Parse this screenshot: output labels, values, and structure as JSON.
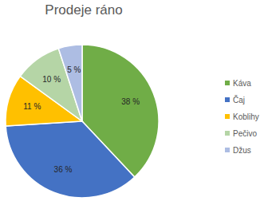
{
  "chart_data": {
    "type": "pie",
    "title": "Prodeje ráno",
    "categories": [
      "Káva",
      "Čaj",
      "Koblihy",
      "Pečivo",
      "Džus"
    ],
    "values": [
      38,
      36,
      11,
      10,
      5
    ],
    "value_labels": [
      "38 %",
      "36 %",
      "11 %",
      "10 %",
      "5 %"
    ],
    "colors": [
      "#70ad47",
      "#4472c4",
      "#ffc000",
      "#b5d5a6",
      "#adbde3"
    ],
    "data_labels": true,
    "legend": "right"
  }
}
